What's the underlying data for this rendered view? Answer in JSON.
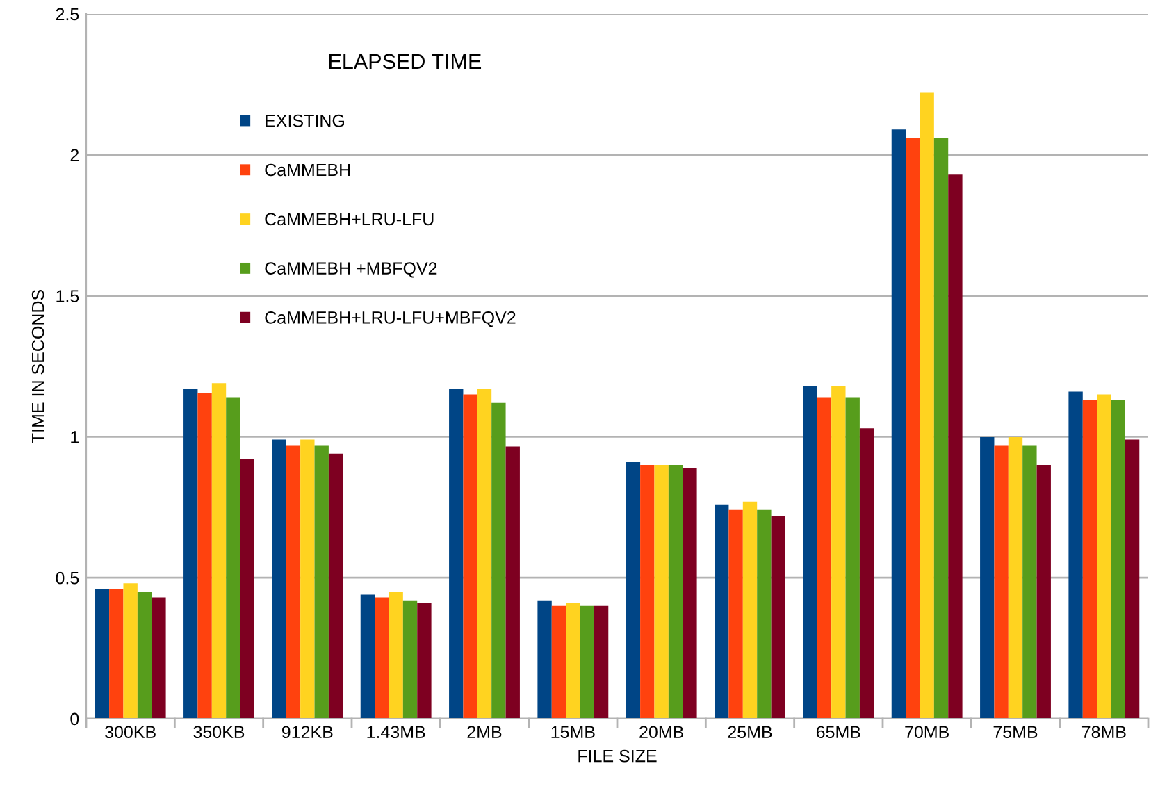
{
  "chart_data": {
    "type": "bar",
    "title": "ELAPSED TIME",
    "xlabel": "FILE SIZE",
    "ylabel": "TIME IN SECONDS",
    "categories": [
      "300KB",
      "350KB",
      "912KB",
      "1.43MB",
      "2MB",
      "15MB",
      "20MB",
      "25MB",
      "65MB",
      "70MB",
      "75MB",
      "78MB"
    ],
    "series": [
      {
        "name": "EXISTING",
        "color": "#004586",
        "values": [
          0.46,
          1.17,
          0.99,
          0.44,
          1.17,
          0.42,
          0.91,
          0.76,
          1.18,
          2.09,
          1.0,
          1.16
        ]
      },
      {
        "name": "CaMMEBH",
        "color": "#ff420e",
        "values": [
          0.46,
          1.155,
          0.97,
          0.43,
          1.15,
          0.4,
          0.9,
          0.74,
          1.14,
          2.06,
          0.97,
          1.13
        ]
      },
      {
        "name": "CaMMEBH+LRU-LFU",
        "color": "#ffd320",
        "values": [
          0.48,
          1.19,
          0.99,
          0.45,
          1.17,
          0.41,
          0.9,
          0.77,
          1.18,
          2.22,
          1.0,
          1.15
        ]
      },
      {
        "name": "CaMMEBH +MBFQV2",
        "color": "#579d1c",
        "values": [
          0.45,
          1.14,
          0.97,
          0.42,
          1.12,
          0.4,
          0.9,
          0.74,
          1.14,
          2.06,
          0.97,
          1.13
        ]
      },
      {
        "name": "CaMMEBH+LRU-LFU+MBFQV2",
        "color": "#7e0021",
        "values": [
          0.43,
          0.92,
          0.94,
          0.41,
          0.965,
          0.4,
          0.89,
          0.72,
          1.03,
          1.93,
          0.9,
          0.99
        ]
      }
    ],
    "ylim": [
      0,
      2.5
    ],
    "yticks": [
      0,
      0.5,
      1,
      1.5,
      2,
      2.5
    ],
    "grid": "y",
    "legend": "top left"
  }
}
